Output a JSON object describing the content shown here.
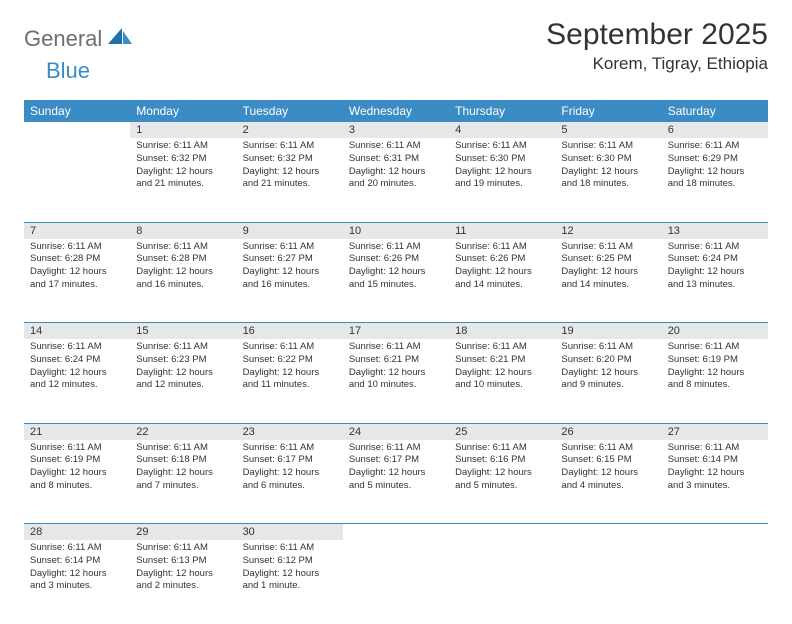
{
  "logo": {
    "part1": "General",
    "part2": "Blue"
  },
  "title": "September 2025",
  "subtitle": "Korem, Tigray, Ethiopia",
  "colors": {
    "header_bg": "#3b8bc4",
    "header_text": "#ffffff",
    "daynum_bg": "#e6e7e8",
    "border": "#3b8bc4",
    "logo_gray": "#6d6e71",
    "logo_blue": "#3b8bc4",
    "body_text": "#333333",
    "page_bg": "#ffffff"
  },
  "typography": {
    "title_fontsize": 30,
    "subtitle_fontsize": 17,
    "weekday_fontsize": 12,
    "daynum_fontsize": 11,
    "cell_fontsize": 9.5,
    "logo_fontsize": 22
  },
  "weekdays": [
    "Sunday",
    "Monday",
    "Tuesday",
    "Wednesday",
    "Thursday",
    "Friday",
    "Saturday"
  ],
  "weeks": [
    [
      {
        "num": "",
        "text": ""
      },
      {
        "num": "1",
        "text": "Sunrise: 6:11 AM\nSunset: 6:32 PM\nDaylight: 12 hours and 21 minutes."
      },
      {
        "num": "2",
        "text": "Sunrise: 6:11 AM\nSunset: 6:32 PM\nDaylight: 12 hours and 21 minutes."
      },
      {
        "num": "3",
        "text": "Sunrise: 6:11 AM\nSunset: 6:31 PM\nDaylight: 12 hours and 20 minutes."
      },
      {
        "num": "4",
        "text": "Sunrise: 6:11 AM\nSunset: 6:30 PM\nDaylight: 12 hours and 19 minutes."
      },
      {
        "num": "5",
        "text": "Sunrise: 6:11 AM\nSunset: 6:30 PM\nDaylight: 12 hours and 18 minutes."
      },
      {
        "num": "6",
        "text": "Sunrise: 6:11 AM\nSunset: 6:29 PM\nDaylight: 12 hours and 18 minutes."
      }
    ],
    [
      {
        "num": "7",
        "text": "Sunrise: 6:11 AM\nSunset: 6:28 PM\nDaylight: 12 hours and 17 minutes."
      },
      {
        "num": "8",
        "text": "Sunrise: 6:11 AM\nSunset: 6:28 PM\nDaylight: 12 hours and 16 minutes."
      },
      {
        "num": "9",
        "text": "Sunrise: 6:11 AM\nSunset: 6:27 PM\nDaylight: 12 hours and 16 minutes."
      },
      {
        "num": "10",
        "text": "Sunrise: 6:11 AM\nSunset: 6:26 PM\nDaylight: 12 hours and 15 minutes."
      },
      {
        "num": "11",
        "text": "Sunrise: 6:11 AM\nSunset: 6:26 PM\nDaylight: 12 hours and 14 minutes."
      },
      {
        "num": "12",
        "text": "Sunrise: 6:11 AM\nSunset: 6:25 PM\nDaylight: 12 hours and 14 minutes."
      },
      {
        "num": "13",
        "text": "Sunrise: 6:11 AM\nSunset: 6:24 PM\nDaylight: 12 hours and 13 minutes."
      }
    ],
    [
      {
        "num": "14",
        "text": "Sunrise: 6:11 AM\nSunset: 6:24 PM\nDaylight: 12 hours and 12 minutes."
      },
      {
        "num": "15",
        "text": "Sunrise: 6:11 AM\nSunset: 6:23 PM\nDaylight: 12 hours and 12 minutes."
      },
      {
        "num": "16",
        "text": "Sunrise: 6:11 AM\nSunset: 6:22 PM\nDaylight: 12 hours and 11 minutes."
      },
      {
        "num": "17",
        "text": "Sunrise: 6:11 AM\nSunset: 6:21 PM\nDaylight: 12 hours and 10 minutes."
      },
      {
        "num": "18",
        "text": "Sunrise: 6:11 AM\nSunset: 6:21 PM\nDaylight: 12 hours and 10 minutes."
      },
      {
        "num": "19",
        "text": "Sunrise: 6:11 AM\nSunset: 6:20 PM\nDaylight: 12 hours and 9 minutes."
      },
      {
        "num": "20",
        "text": "Sunrise: 6:11 AM\nSunset: 6:19 PM\nDaylight: 12 hours and 8 minutes."
      }
    ],
    [
      {
        "num": "21",
        "text": "Sunrise: 6:11 AM\nSunset: 6:19 PM\nDaylight: 12 hours and 8 minutes."
      },
      {
        "num": "22",
        "text": "Sunrise: 6:11 AM\nSunset: 6:18 PM\nDaylight: 12 hours and 7 minutes."
      },
      {
        "num": "23",
        "text": "Sunrise: 6:11 AM\nSunset: 6:17 PM\nDaylight: 12 hours and 6 minutes."
      },
      {
        "num": "24",
        "text": "Sunrise: 6:11 AM\nSunset: 6:17 PM\nDaylight: 12 hours and 5 minutes."
      },
      {
        "num": "25",
        "text": "Sunrise: 6:11 AM\nSunset: 6:16 PM\nDaylight: 12 hours and 5 minutes."
      },
      {
        "num": "26",
        "text": "Sunrise: 6:11 AM\nSunset: 6:15 PM\nDaylight: 12 hours and 4 minutes."
      },
      {
        "num": "27",
        "text": "Sunrise: 6:11 AM\nSunset: 6:14 PM\nDaylight: 12 hours and 3 minutes."
      }
    ],
    [
      {
        "num": "28",
        "text": "Sunrise: 6:11 AM\nSunset: 6:14 PM\nDaylight: 12 hours and 3 minutes."
      },
      {
        "num": "29",
        "text": "Sunrise: 6:11 AM\nSunset: 6:13 PM\nDaylight: 12 hours and 2 minutes."
      },
      {
        "num": "30",
        "text": "Sunrise: 6:11 AM\nSunset: 6:12 PM\nDaylight: 12 hours and 1 minute."
      },
      {
        "num": "",
        "text": ""
      },
      {
        "num": "",
        "text": ""
      },
      {
        "num": "",
        "text": ""
      },
      {
        "num": "",
        "text": ""
      }
    ]
  ]
}
